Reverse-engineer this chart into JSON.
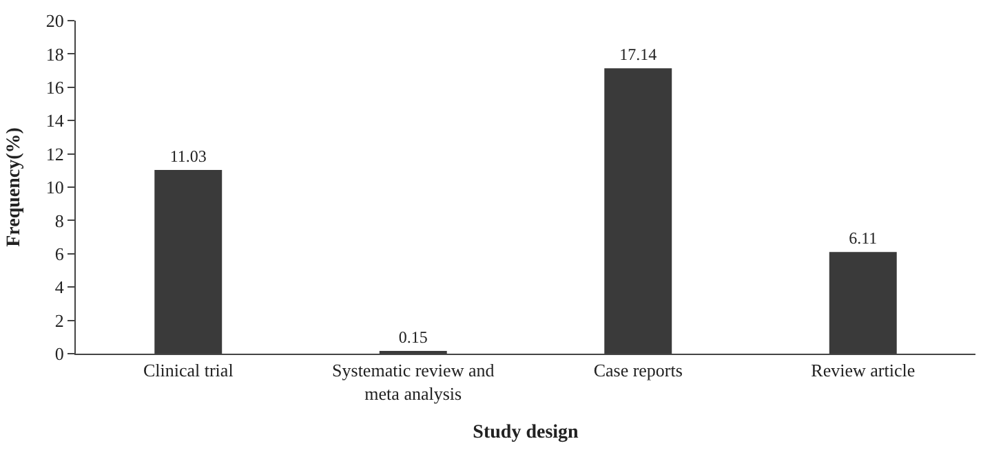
{
  "chart_data": {
    "type": "bar",
    "xlabel": "Study design",
    "ylabel": "Frequency(%)",
    "categories": [
      "Clinical trial",
      "Systematic review and\nmeta analysis",
      "Case reports",
      "Review article"
    ],
    "values": [
      11.03,
      0.15,
      17.14,
      6.11
    ],
    "color": "#3a3a3a",
    "ylim": [
      0,
      20
    ],
    "yticks": [
      0,
      2,
      4,
      6,
      8,
      10,
      12,
      14,
      16,
      18,
      20
    ],
    "data_labels": true
  }
}
